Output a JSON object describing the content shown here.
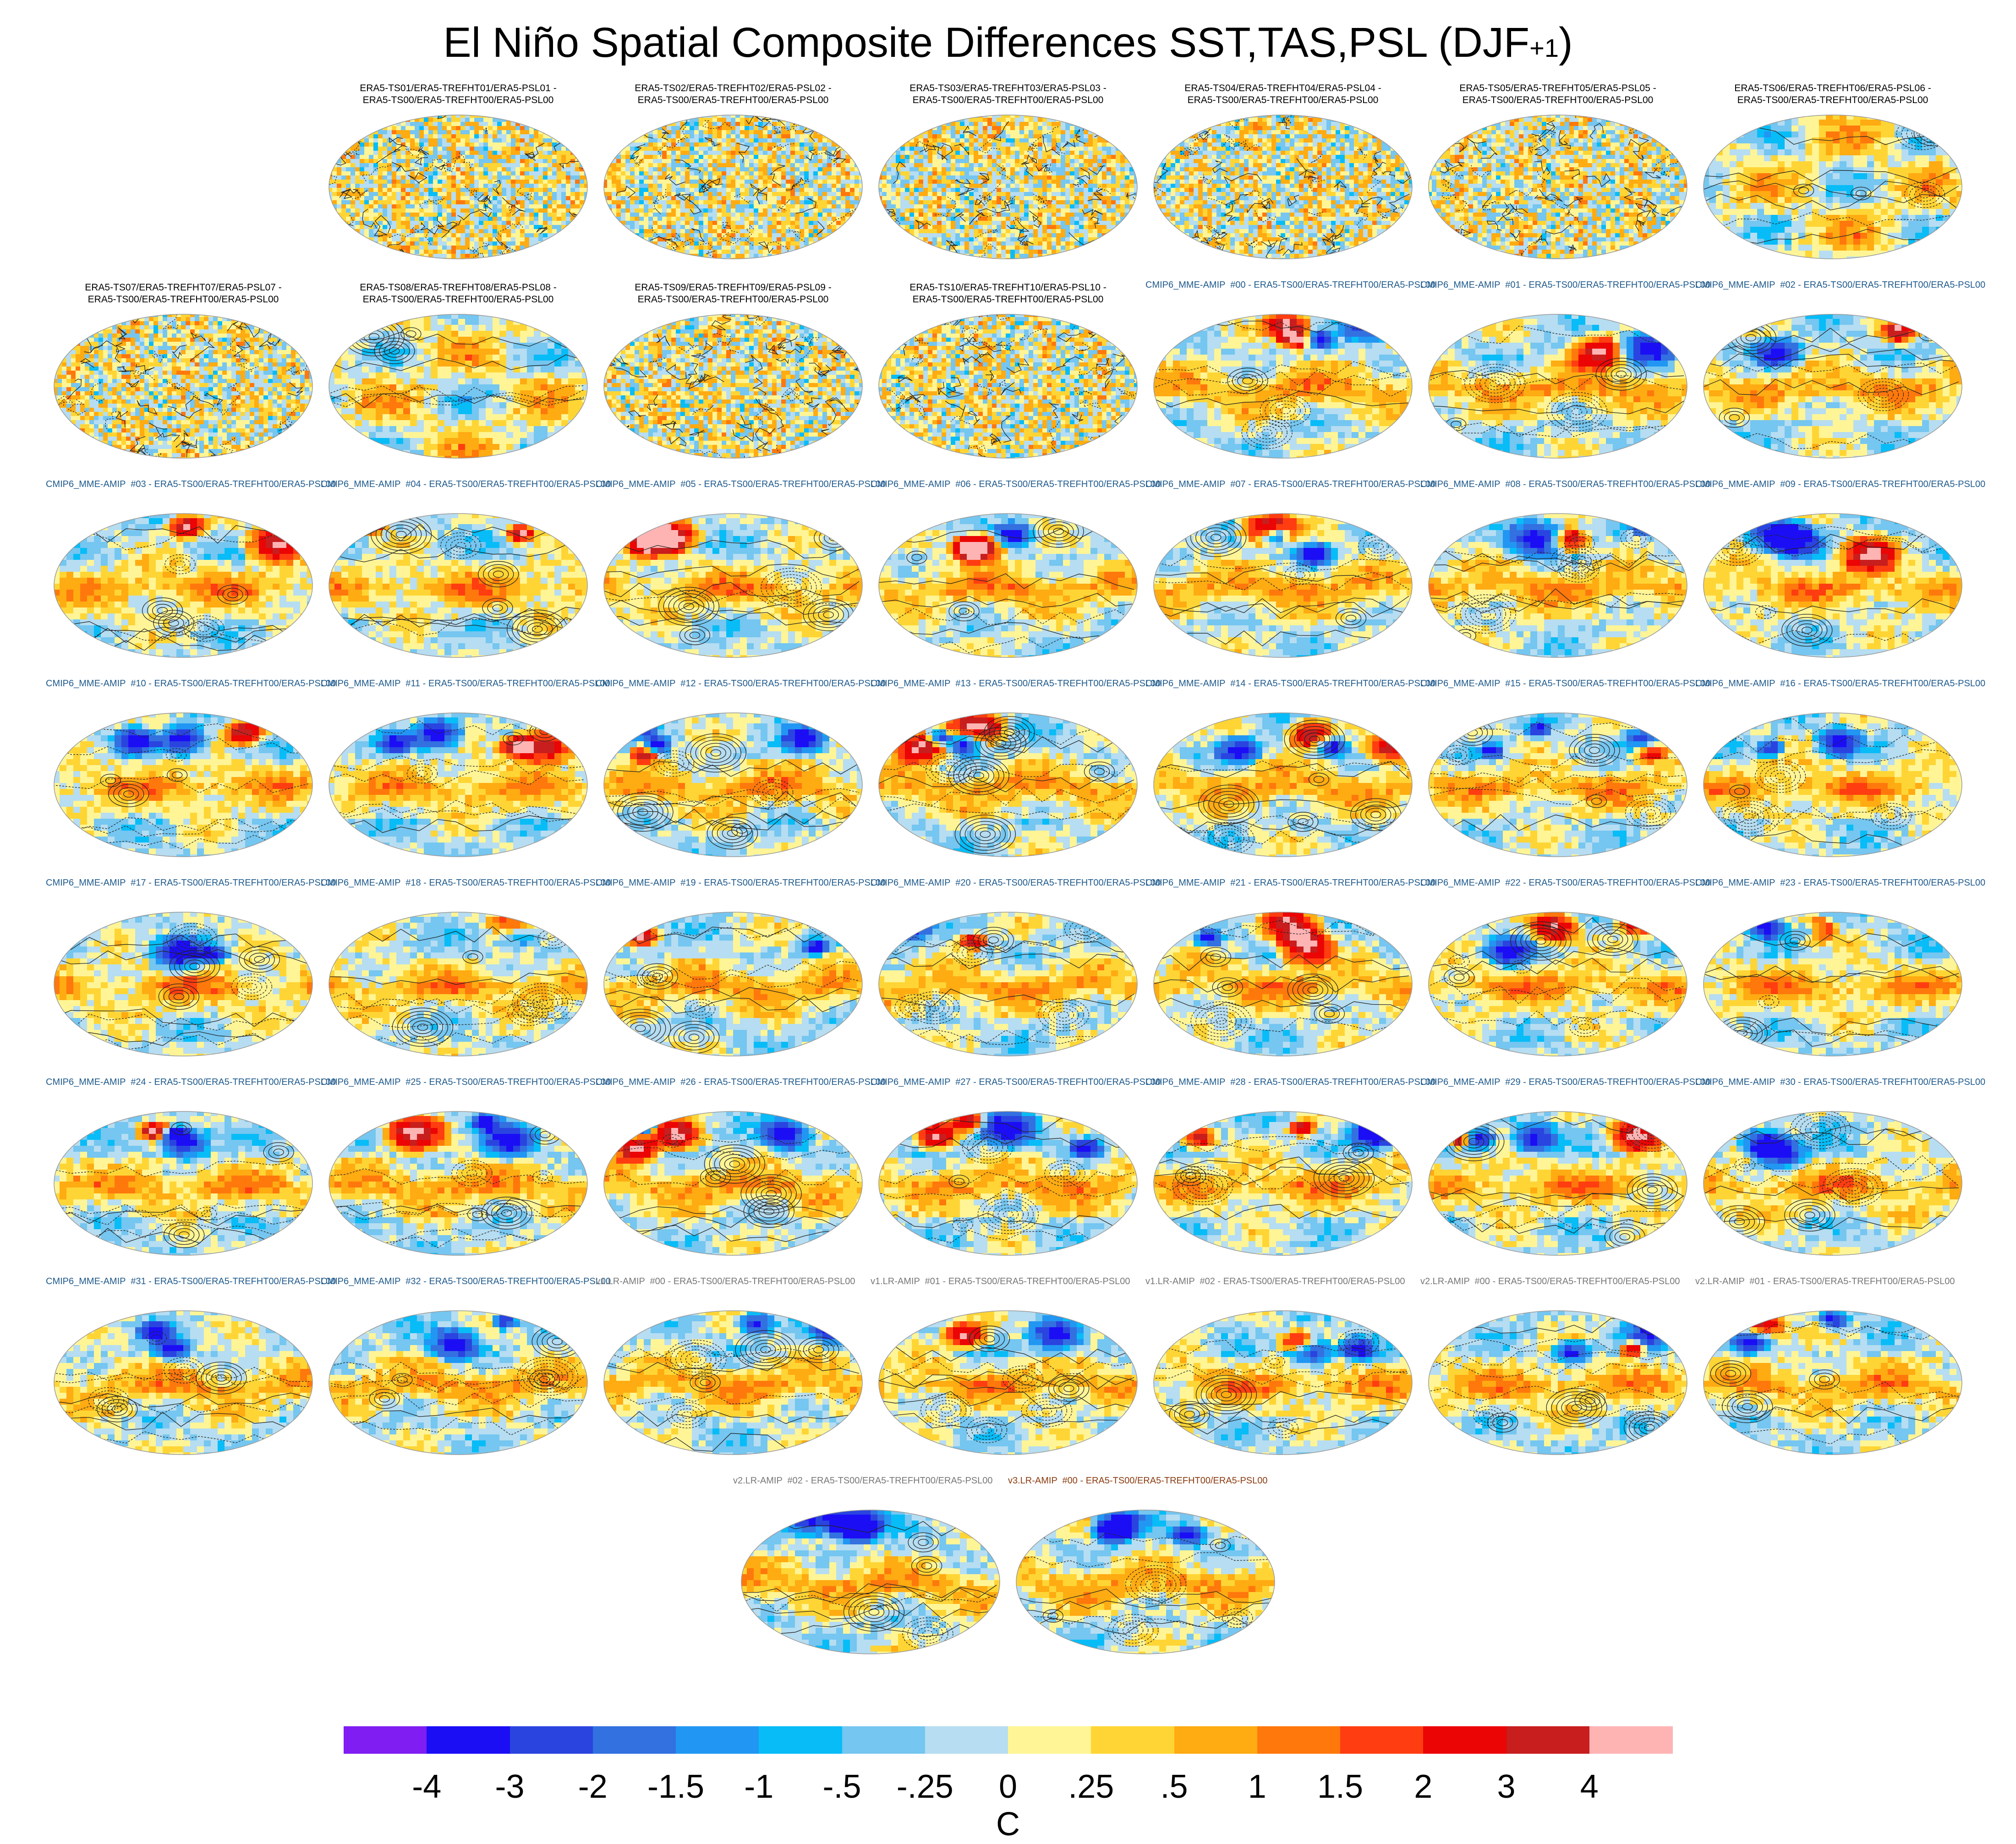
{
  "title": {
    "main": "El Niño Spatial Composite Differences SST,TAS,PSL (DJF",
    "sup": "+1",
    "close": ")"
  },
  "colors": {
    "era_title": "#000000",
    "cmip_title": "#1f5a8c",
    "v2lr_title": "#777777",
    "v3lr_title": "#8b3a0e",
    "map_outline": "#999999",
    "contour": "#222222",
    "land_base": "#bfe0f2"
  },
  "panels": [
    {
      "title": "ERA5-TS01/ERA5-TREFHT01/ERA5-PSL01 -\nERA5-TS00/ERA5-TREFHT00/ERA5-PSL00",
      "group": "era",
      "pattern": "noise"
    },
    {
      "title": "ERA5-TS02/ERA5-TREFHT02/ERA5-PSL02 -\nERA5-TS00/ERA5-TREFHT00/ERA5-PSL00",
      "group": "era",
      "pattern": "noise"
    },
    {
      "title": "ERA5-TS03/ERA5-TREFHT03/ERA5-PSL03 -\nERA5-TS00/ERA5-TREFHT00/ERA5-PSL00",
      "group": "era",
      "pattern": "noise"
    },
    {
      "title": "ERA5-TS04/ERA5-TREFHT04/ERA5-PSL04 -\nERA5-TS00/ERA5-TREFHT00/ERA5-PSL00",
      "group": "era",
      "pattern": "noise"
    },
    {
      "title": "ERA5-TS05/ERA5-TREFHT05/ERA5-PSL05 -\nERA5-TS00/ERA5-TREFHT00/ERA5-PSL00",
      "group": "era",
      "pattern": "noise"
    },
    {
      "title": "ERA5-TS06/ERA5-TREFHT06/ERA5-PSL06 -\nERA5-TS00/ERA5-TREFHT00/ERA5-PSL00",
      "group": "era",
      "pattern": "smooth"
    },
    {
      "title": "ERA5-TS07/ERA5-TREFHT07/ERA5-PSL07 -\nERA5-TS00/ERA5-TREFHT00/ERA5-PSL00",
      "group": "era",
      "pattern": "noise"
    },
    {
      "title": "ERA5-TS08/ERA5-TREFHT08/ERA5-PSL08 -\nERA5-TS00/ERA5-TREFHT00/ERA5-PSL00",
      "group": "era",
      "pattern": "smooth"
    },
    {
      "title": "ERA5-TS09/ERA5-TREFHT09/ERA5-PSL09 -\nERA5-TS00/ERA5-TREFHT00/ERA5-PSL00",
      "group": "era",
      "pattern": "noise"
    },
    {
      "title": "ERA5-TS10/ERA5-TREFHT10/ERA5-PSL10 -\nERA5-TS00/ERA5-TREFHT00/ERA5-PSL00",
      "group": "era",
      "pattern": "noise"
    },
    {
      "title": "CMIP6_MME-AMIP  #00 - ERA5-TS00/ERA5-TREFHT00/ERA5-PSL00",
      "group": "cmip",
      "pattern": "model"
    },
    {
      "title": "CMIP6_MME-AMIP  #01 - ERA5-TS00/ERA5-TREFHT00/ERA5-PSL00",
      "group": "cmip",
      "pattern": "model"
    },
    {
      "title": "CMIP6_MME-AMIP  #02 - ERA5-TS00/ERA5-TREFHT00/ERA5-PSL00",
      "group": "cmip",
      "pattern": "model"
    },
    {
      "title": "CMIP6_MME-AMIP  #03 - ERA5-TS00/ERA5-TREFHT00/ERA5-PSL00",
      "group": "cmip",
      "pattern": "model"
    },
    {
      "title": "CMIP6_MME-AMIP  #04 - ERA5-TS00/ERA5-TREFHT00/ERA5-PSL00",
      "group": "cmip",
      "pattern": "model"
    },
    {
      "title": "CMIP6_MME-AMIP  #05 - ERA5-TS00/ERA5-TREFHT00/ERA5-PSL00",
      "group": "cmip",
      "pattern": "model"
    },
    {
      "title": "CMIP6_MME-AMIP  #06 - ERA5-TS00/ERA5-TREFHT00/ERA5-PSL00",
      "group": "cmip",
      "pattern": "model"
    },
    {
      "title": "CMIP6_MME-AMIP  #07 - ERA5-TS00/ERA5-TREFHT00/ERA5-PSL00",
      "group": "cmip",
      "pattern": "model"
    },
    {
      "title": "CMIP6_MME-AMIP  #08 - ERA5-TS00/ERA5-TREFHT00/ERA5-PSL00",
      "group": "cmip",
      "pattern": "model"
    },
    {
      "title": "CMIP6_MME-AMIP  #09 - ERA5-TS00/ERA5-TREFHT00/ERA5-PSL00",
      "group": "cmip",
      "pattern": "model"
    },
    {
      "title": "CMIP6_MME-AMIP  #10 - ERA5-TS00/ERA5-TREFHT00/ERA5-PSL00",
      "group": "cmip",
      "pattern": "model"
    },
    {
      "title": "CMIP6_MME-AMIP  #11 - ERA5-TS00/ERA5-TREFHT00/ERA5-PSL00",
      "group": "cmip",
      "pattern": "model"
    },
    {
      "title": "CMIP6_MME-AMIP  #12 - ERA5-TS00/ERA5-TREFHT00/ERA5-PSL00",
      "group": "cmip",
      "pattern": "model"
    },
    {
      "title": "CMIP6_MME-AMIP  #13 - ERA5-TS00/ERA5-TREFHT00/ERA5-PSL00",
      "group": "cmip",
      "pattern": "model"
    },
    {
      "title": "CMIP6_MME-AMIP  #14 - ERA5-TS00/ERA5-TREFHT00/ERA5-PSL00",
      "group": "cmip",
      "pattern": "model"
    },
    {
      "title": "CMIP6_MME-AMIP  #15 - ERA5-TS00/ERA5-TREFHT00/ERA5-PSL00",
      "group": "cmip",
      "pattern": "model"
    },
    {
      "title": "CMIP6_MME-AMIP  #16 - ERA5-TS00/ERA5-TREFHT00/ERA5-PSL00",
      "group": "cmip",
      "pattern": "model"
    },
    {
      "title": "CMIP6_MME-AMIP  #17 - ERA5-TS00/ERA5-TREFHT00/ERA5-PSL00",
      "group": "cmip",
      "pattern": "model"
    },
    {
      "title": "CMIP6_MME-AMIP  #18 - ERA5-TS00/ERA5-TREFHT00/ERA5-PSL00",
      "group": "cmip",
      "pattern": "model"
    },
    {
      "title": "CMIP6_MME-AMIP  #19 - ERA5-TS00/ERA5-TREFHT00/ERA5-PSL00",
      "group": "cmip",
      "pattern": "model"
    },
    {
      "title": "CMIP6_MME-AMIP  #20 - ERA5-TS00/ERA5-TREFHT00/ERA5-PSL00",
      "group": "cmip",
      "pattern": "model"
    },
    {
      "title": "CMIP6_MME-AMIP  #21 - ERA5-TS00/ERA5-TREFHT00/ERA5-PSL00",
      "group": "cmip",
      "pattern": "model"
    },
    {
      "title": "CMIP6_MME-AMIP  #22 - ERA5-TS00/ERA5-TREFHT00/ERA5-PSL00",
      "group": "cmip",
      "pattern": "model"
    },
    {
      "title": "CMIP6_MME-AMIP  #23 - ERA5-TS00/ERA5-TREFHT00/ERA5-PSL00",
      "group": "cmip",
      "pattern": "model"
    },
    {
      "title": "CMIP6_MME-AMIP  #24 - ERA5-TS00/ERA5-TREFHT00/ERA5-PSL00",
      "group": "cmip",
      "pattern": "model"
    },
    {
      "title": "CMIP6_MME-AMIP  #25 - ERA5-TS00/ERA5-TREFHT00/ERA5-PSL00",
      "group": "cmip",
      "pattern": "model"
    },
    {
      "title": "CMIP6_MME-AMIP  #26 - ERA5-TS00/ERA5-TREFHT00/ERA5-PSL00",
      "group": "cmip",
      "pattern": "model"
    },
    {
      "title": "CMIP6_MME-AMIP  #27 - ERA5-TS00/ERA5-TREFHT00/ERA5-PSL00",
      "group": "cmip",
      "pattern": "model"
    },
    {
      "title": "CMIP6_MME-AMIP  #28 - ERA5-TS00/ERA5-TREFHT00/ERA5-PSL00",
      "group": "cmip",
      "pattern": "model"
    },
    {
      "title": "CMIP6_MME-AMIP  #29 - ERA5-TS00/ERA5-TREFHT00/ERA5-PSL00",
      "group": "cmip",
      "pattern": "model"
    },
    {
      "title": "CMIP6_MME-AMIP  #30 - ERA5-TS00/ERA5-TREFHT00/ERA5-PSL00",
      "group": "cmip",
      "pattern": "model"
    },
    {
      "title": "CMIP6_MME-AMIP  #31 - ERA5-TS00/ERA5-TREFHT00/ERA5-PSL00",
      "group": "cmip",
      "pattern": "model"
    },
    {
      "title": "CMIP6_MME-AMIP  #32 - ERA5-TS00/ERA5-TREFHT00/ERA5-PSL00",
      "group": "cmip",
      "pattern": "model"
    },
    {
      "title": "v1.LR-AMIP  #00 - ERA5-TS00/ERA5-TREFHT00/ERA5-PSL00",
      "group": "v1lr",
      "pattern": "model"
    },
    {
      "title": "v1.LR-AMIP  #01 - ERA5-TS00/ERA5-TREFHT00/ERA5-PSL00",
      "group": "v1lr",
      "pattern": "model"
    },
    {
      "title": "v1.LR-AMIP  #02 - ERA5-TS00/ERA5-TREFHT00/ERA5-PSL00",
      "group": "v1lr",
      "pattern": "model"
    },
    {
      "title": "v2.LR-AMIP  #00 - ERA5-TS00/ERA5-TREFHT00/ERA5-PSL00",
      "group": "v2lr",
      "pattern": "model"
    },
    {
      "title": "v2.LR-AMIP  #01 - ERA5-TS00/ERA5-TREFHT00/ERA5-PSL00",
      "group": "v2lr",
      "pattern": "model"
    },
    {
      "title": "v2.LR-AMIP  #02 - ERA5-TS00/ERA5-TREFHT00/ERA5-PSL00",
      "group": "v2lr",
      "pattern": "model"
    },
    {
      "title": "v3.LR-AMIP  #00 - ERA5-TS00/ERA5-TREFHT00/ERA5-PSL00",
      "group": "v3lr",
      "pattern": "model"
    }
  ],
  "colorbar": {
    "colors": [
      "#7f1df2",
      "#1b0ef5",
      "#2a44e0",
      "#3370e0",
      "#2196f3",
      "#08bcf7",
      "#75c6f0",
      "#b6ddf1",
      "#fff596",
      "#ffd535",
      "#ffab12",
      "#ff780c",
      "#ff3d10",
      "#eb0505",
      "#c81e1e",
      "#ffb4b4"
    ],
    "ticks": [
      "-4",
      "-3",
      "-2",
      "-1.5",
      "-1",
      "-.5",
      "-.25",
      "0",
      ".25",
      ".5",
      "1",
      "1.5",
      "2",
      "3",
      "4"
    ],
    "units": "C"
  }
}
